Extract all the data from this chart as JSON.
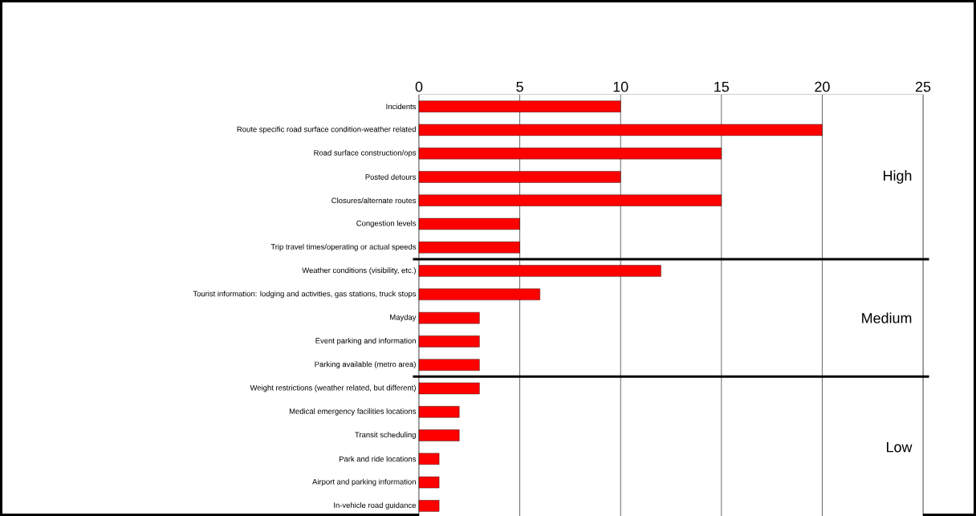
{
  "chart_data": {
    "type": "bar",
    "orientation": "horizontal",
    "categories": [
      "Incidents",
      "Route specific road surface condition-weather related",
      "Road surface construction/ops",
      "Posted detours",
      "Closures/alternate routes",
      "Congestion levels",
      "Trip travel times/operating or actual speeds",
      "Weather conditions (visibility, etc.)",
      "Tourist information: lodging and activities, gas stations, truck stops",
      "Mayday",
      "Event parking and information",
      "Parking available (metro area)",
      "Weight restrictions (weather related, but different)",
      "Medical emergency facilities locations",
      "Transit scheduling",
      "Park and ride locations",
      "Airport and parking information",
      "In-vehicle road guidance"
    ],
    "values": [
      10,
      20,
      15,
      10,
      15,
      5,
      5,
      12,
      6,
      3,
      3,
      3,
      3,
      2,
      2,
      1,
      1,
      1
    ],
    "color": "#ff0000",
    "xlim": [
      0,
      25
    ],
    "xticks": [
      0,
      5,
      10,
      15,
      20,
      25
    ],
    "grid": "x",
    "bands": [
      {
        "axis": "y",
        "from": "Incidents",
        "to": "Trip travel times/operating or actual speeds",
        "label": "High",
        "color": "#ffffff"
      },
      {
        "axis": "y",
        "from": "Weather conditions (visibility, etc.)",
        "to": "Parking available (metro area)",
        "label": "Medium",
        "color": "#ffffff"
      },
      {
        "axis": "y",
        "from": "Weight restrictions (weather related, but different)",
        "to": "In-vehicle road guidance",
        "label": "Low",
        "color": "#ffffff"
      }
    ]
  }
}
